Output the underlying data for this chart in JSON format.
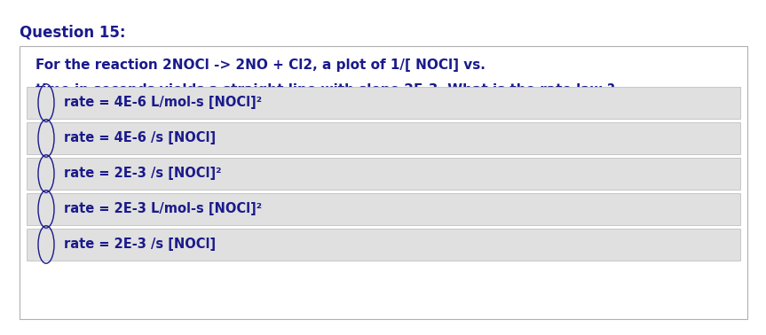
{
  "title": "Question 15:",
  "question_text_line1": "For the reaction 2NOCl -> 2NO + Cl2, a plot of 1/[ NOCl] vs.",
  "question_text_line2": "time in seconds yields a straight line with slope 2E-3. What is the rate law ?",
  "options": [
    "rate = 4E-6 L/mol-s [NOCl]²",
    "rate = 4E-6 /s [NOCl]",
    "rate = 2E-3 /s [NOCl]²",
    "rate = 2E-3 L/mol-s [NOCl]²",
    "rate = 2E-3 /s [NOCl]"
  ],
  "bg_color": "#ffffff",
  "outer_box_color": "#ffffff",
  "outer_box_border": "#b0b0b0",
  "option_box_color": "#e0e0e0",
  "option_box_border": "#c0c0c0",
  "title_color": "#1a1a8c",
  "question_color": "#1a1a8c",
  "option_color": "#1a1a8c",
  "title_fontsize": 12,
  "question_fontsize": 11,
  "option_fontsize": 10.5,
  "fig_width": 8.44,
  "fig_height": 3.58
}
